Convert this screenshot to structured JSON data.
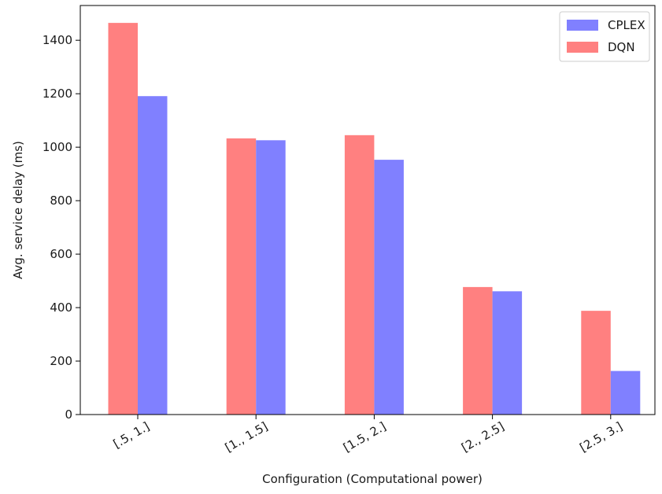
{
  "chart_data": {
    "type": "bar",
    "title": "",
    "xlabel": "Configuration (Computational power)",
    "ylabel": "Avg. service delay (ms)",
    "categories": [
      "[.5, 1.]",
      "[1., 1.5]",
      "[1.5, 2.]",
      "[2., 2.5]",
      "[2.5, 3.]"
    ],
    "ylim": [
      0,
      1530
    ],
    "yticks": [
      0,
      200,
      400,
      600,
      800,
      1000,
      1200,
      1400
    ],
    "series": [
      {
        "name": "DQN",
        "color": "#ff8080",
        "values": [
          1465,
          1033,
          1045,
          477,
          388
        ]
      },
      {
        "name": "CPLEX",
        "color": "#8080ff",
        "values": [
          1191,
          1026,
          953,
          461,
          163
        ]
      }
    ],
    "legend": {
      "placement": "top-right",
      "order": [
        "CPLEX",
        "DQN"
      ]
    },
    "grid": false
  }
}
